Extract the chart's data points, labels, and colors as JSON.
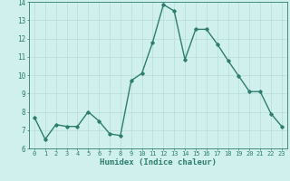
{
  "x": [
    0,
    1,
    2,
    3,
    4,
    5,
    6,
    7,
    8,
    9,
    10,
    11,
    12,
    13,
    14,
    15,
    16,
    17,
    18,
    19,
    20,
    21,
    22,
    23
  ],
  "y": [
    7.7,
    6.5,
    7.3,
    7.2,
    7.2,
    8.0,
    7.5,
    6.8,
    6.7,
    9.7,
    10.1,
    11.8,
    13.85,
    13.5,
    10.85,
    12.5,
    12.5,
    11.7,
    10.8,
    9.95,
    9.1,
    9.1,
    7.9,
    7.2
  ],
  "line_color": "#2e7d6e",
  "marker": "D",
  "marker_size": 1.8,
  "bg_color": "#cff0ec",
  "grid_color": "#b8ddd8",
  "xlabel": "Humidex (Indice chaleur)",
  "xlim": [
    -0.5,
    23.5
  ],
  "ylim": [
    6,
    14
  ],
  "yticks": [
    6,
    7,
    8,
    9,
    10,
    11,
    12,
    13,
    14
  ],
  "xticks": [
    0,
    1,
    2,
    3,
    4,
    5,
    6,
    7,
    8,
    9,
    10,
    11,
    12,
    13,
    14,
    15,
    16,
    17,
    18,
    19,
    20,
    21,
    22,
    23
  ],
  "tick_color": "#2e7d6e",
  "label_color": "#2e7d6e",
  "linewidth": 1.0,
  "tick_fontsize": 5.0,
  "xlabel_fontsize": 6.5
}
